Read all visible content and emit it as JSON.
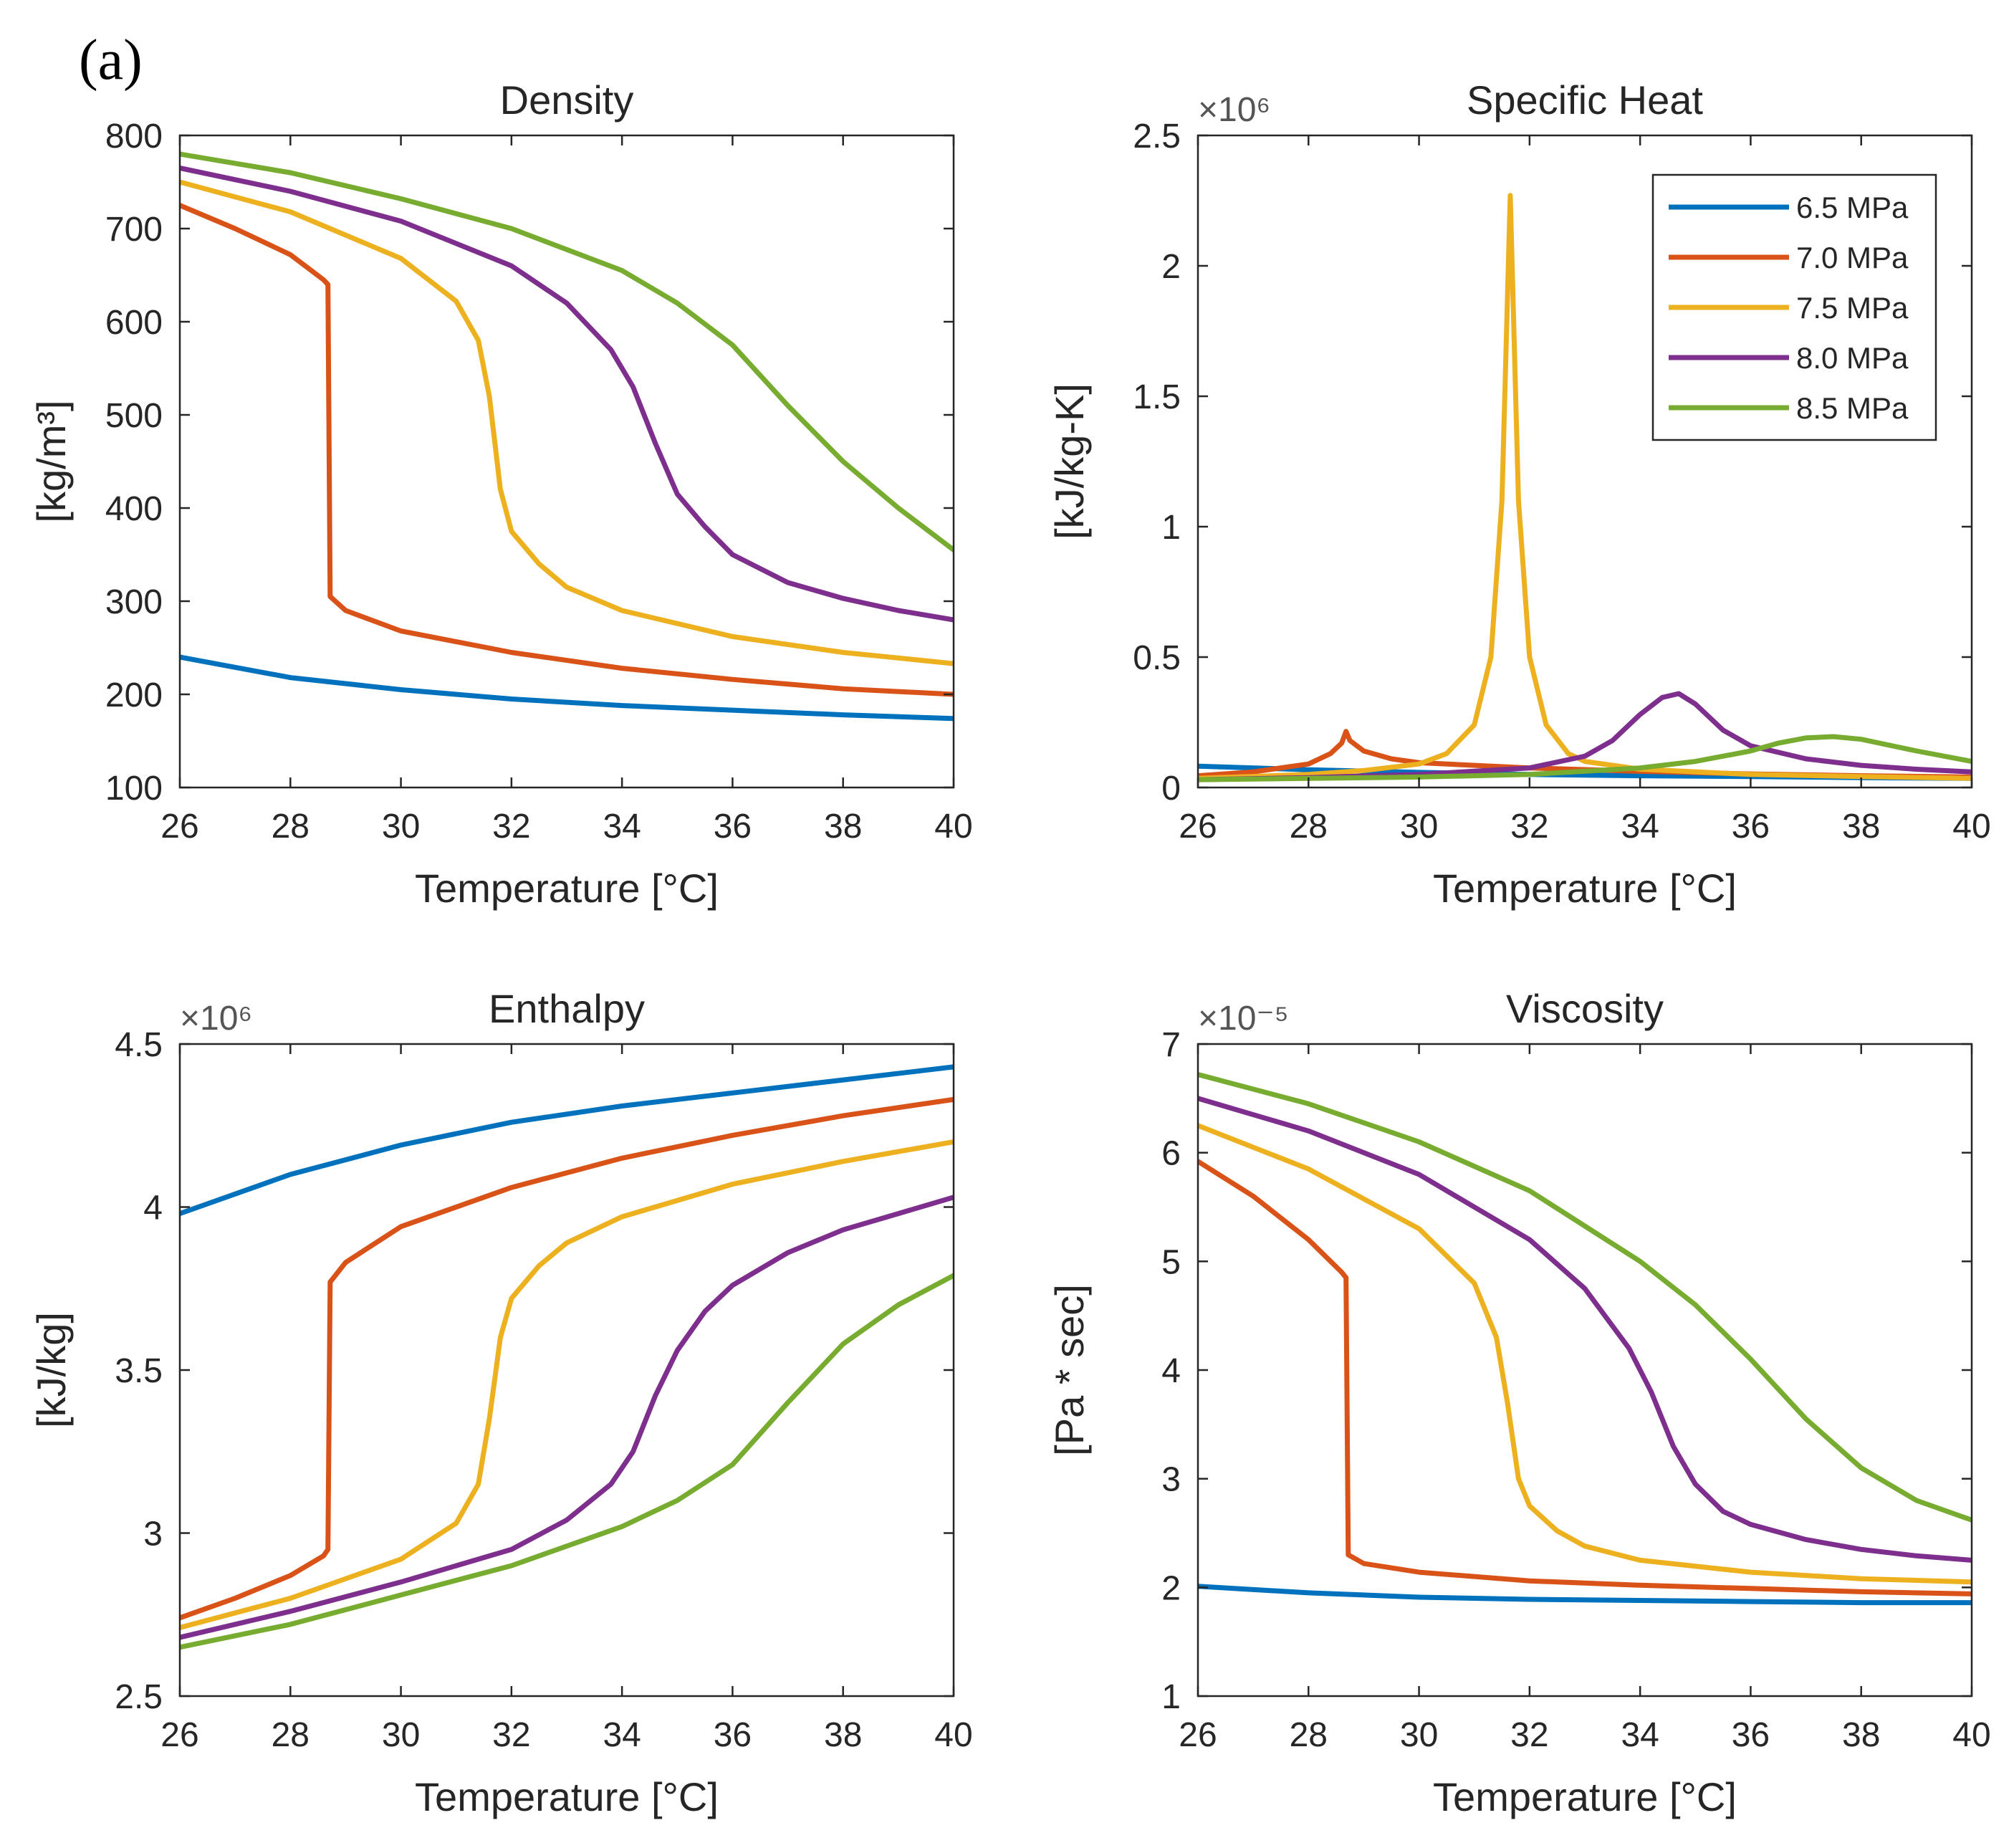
{
  "figure": {
    "panel_label": "(a)"
  },
  "series_colors": {
    "6.5 MPa": "#0072BD",
    "7.0 MPa": "#D95319",
    "7.5 MPa": "#EDB120",
    "8.0 MPa": "#7E2F8E",
    "8.5 MPa": "#77AC30"
  },
  "chart_data": [
    {
      "id": "density",
      "type": "line",
      "title": "Density",
      "xlabel": "Temperature [°C]",
      "ylabel": "[kg/m³]",
      "xlim": [
        26,
        40
      ],
      "ylim": [
        100,
        800
      ],
      "xticks": [
        26,
        28,
        30,
        32,
        34,
        36,
        38,
        40
      ],
      "yticks": [
        100,
        200,
        300,
        400,
        500,
        600,
        700,
        800
      ],
      "ytick_labels": [
        "100",
        "200",
        "300",
        "400",
        "500",
        "600",
        "700",
        "800"
      ],
      "exponent_label": "",
      "series": [
        {
          "name": "6.5 MPa",
          "x": [
            26,
            28,
            30,
            32,
            34,
            36,
            38,
            40
          ],
          "values": [
            240,
            218,
            205,
            195,
            188,
            183,
            178,
            174
          ]
        },
        {
          "name": "7.0 MPa",
          "x": [
            26,
            27,
            28,
            28.6,
            28.68,
            28.72,
            29,
            30,
            32,
            34,
            36,
            38,
            40
          ],
          "values": [
            725,
            700,
            672,
            645,
            640,
            305,
            290,
            268,
            245,
            228,
            216,
            206,
            200
          ]
        },
        {
          "name": "7.5 MPa",
          "x": [
            26,
            28,
            30,
            31,
            31.4,
            31.6,
            31.8,
            32,
            32.5,
            33,
            34,
            36,
            38,
            40
          ],
          "values": [
            750,
            718,
            668,
            622,
            580,
            520,
            420,
            375,
            340,
            315,
            290,
            262,
            245,
            233
          ]
        },
        {
          "name": "8.0 MPa",
          "x": [
            26,
            28,
            30,
            32,
            33,
            33.8,
            34.2,
            34.6,
            35,
            35.5,
            36,
            37,
            38,
            39,
            40
          ],
          "values": [
            765,
            740,
            708,
            660,
            620,
            570,
            530,
            470,
            415,
            380,
            350,
            320,
            303,
            290,
            280
          ]
        },
        {
          "name": "8.5 MPa",
          "x": [
            26,
            28,
            30,
            32,
            34,
            35,
            36,
            37,
            38,
            39,
            40
          ],
          "values": [
            780,
            760,
            732,
            700,
            655,
            620,
            575,
            510,
            450,
            400,
            355
          ]
        }
      ]
    },
    {
      "id": "specific_heat",
      "type": "line",
      "title": "Specific Heat",
      "xlabel": "Temperature [°C]",
      "ylabel": "[kJ/kg-K]",
      "xlim": [
        26,
        40
      ],
      "ylim": [
        0,
        2.5
      ],
      "xticks": [
        26,
        28,
        30,
        32,
        34,
        36,
        38,
        40
      ],
      "yticks": [
        0,
        0.5,
        1,
        1.5,
        2,
        2.5
      ],
      "ytick_labels": [
        "0",
        "0.5",
        "1",
        "1.5",
        "2",
        "2.5"
      ],
      "exponent_label": "×10⁶",
      "legend": {
        "position": "top-right",
        "entries": [
          "6.5 MPa",
          "7.0 MPa",
          "7.5 MPa",
          "8.0 MPa",
          "8.5 MPa"
        ]
      },
      "series": [
        {
          "name": "6.5 MPa",
          "x": [
            26,
            28,
            30,
            32,
            34,
            36,
            38,
            40
          ],
          "values": [
            0.082,
            0.068,
            0.058,
            0.05,
            0.045,
            0.042,
            0.038,
            0.035
          ]
        },
        {
          "name": "7.0 MPa",
          "x": [
            26,
            27,
            28,
            28.4,
            28.6,
            28.68,
            28.75,
            29,
            29.5,
            30,
            32,
            34,
            36,
            38,
            40
          ],
          "values": [
            0.045,
            0.06,
            0.09,
            0.13,
            0.17,
            0.215,
            0.18,
            0.14,
            0.11,
            0.095,
            0.075,
            0.062,
            0.052,
            0.045,
            0.04
          ]
        },
        {
          "name": "7.5 MPa",
          "x": [
            26,
            28,
            29,
            30,
            30.5,
            31,
            31.3,
            31.5,
            31.65,
            31.8,
            32,
            32.3,
            32.7,
            33,
            34,
            36,
            38,
            40
          ],
          "values": [
            0.035,
            0.05,
            0.065,
            0.09,
            0.13,
            0.24,
            0.5,
            1.1,
            2.27,
            1.1,
            0.5,
            0.24,
            0.13,
            0.1,
            0.07,
            0.05,
            0.042,
            0.035
          ]
        },
        {
          "name": "8.0 MPa",
          "x": [
            26,
            28,
            30,
            32,
            33,
            33.5,
            34,
            34.4,
            34.7,
            35,
            35.5,
            36,
            37,
            38,
            39,
            40
          ],
          "values": [
            0.03,
            0.038,
            0.05,
            0.075,
            0.12,
            0.18,
            0.28,
            0.345,
            0.36,
            0.32,
            0.22,
            0.16,
            0.11,
            0.085,
            0.07,
            0.06
          ]
        },
        {
          "name": "8.5 MPa",
          "x": [
            26,
            28,
            30,
            32,
            34,
            35,
            36,
            36.5,
            37,
            37.5,
            38,
            39,
            40
          ],
          "values": [
            0.03,
            0.035,
            0.04,
            0.05,
            0.075,
            0.1,
            0.14,
            0.17,
            0.19,
            0.195,
            0.185,
            0.14,
            0.1
          ]
        }
      ]
    },
    {
      "id": "enthalpy",
      "type": "line",
      "title": "Enthalpy",
      "xlabel": "Temperature [°C]",
      "ylabel": "[kJ/kg]",
      "xlim": [
        26,
        40
      ],
      "ylim": [
        2.5,
        4.5
      ],
      "xticks": [
        26,
        28,
        30,
        32,
        34,
        36,
        38,
        40
      ],
      "yticks": [
        2.5,
        3,
        3.5,
        4,
        4.5
      ],
      "ytick_labels": [
        "2.5",
        "3",
        "3.5",
        "4",
        "4.5"
      ],
      "exponent_label": "×10⁶",
      "series": [
        {
          "name": "6.5 MPa",
          "x": [
            26,
            28,
            30,
            32,
            34,
            36,
            38,
            40
          ],
          "values": [
            3.98,
            4.1,
            4.19,
            4.26,
            4.31,
            4.35,
            4.39,
            4.43
          ]
        },
        {
          "name": "7.0 MPa",
          "x": [
            26,
            27,
            28,
            28.6,
            28.68,
            28.72,
            29,
            30,
            32,
            34,
            36,
            38,
            40
          ],
          "values": [
            2.74,
            2.8,
            2.87,
            2.93,
            2.95,
            3.77,
            3.83,
            3.94,
            4.06,
            4.15,
            4.22,
            4.28,
            4.33
          ]
        },
        {
          "name": "7.5 MPa",
          "x": [
            26,
            28,
            30,
            31,
            31.4,
            31.6,
            31.8,
            32,
            32.5,
            33,
            34,
            36,
            38,
            40
          ],
          "values": [
            2.71,
            2.8,
            2.92,
            3.03,
            3.15,
            3.35,
            3.6,
            3.72,
            3.82,
            3.89,
            3.97,
            4.07,
            4.14,
            4.2
          ]
        },
        {
          "name": "8.0 MPa",
          "x": [
            26,
            28,
            30,
            32,
            33,
            33.8,
            34.2,
            34.6,
            35,
            35.5,
            36,
            37,
            38,
            39,
            40
          ],
          "values": [
            2.68,
            2.76,
            2.85,
            2.95,
            3.04,
            3.15,
            3.25,
            3.42,
            3.56,
            3.68,
            3.76,
            3.86,
            3.93,
            3.98,
            4.03
          ]
        },
        {
          "name": "8.5 MPa",
          "x": [
            26,
            28,
            30,
            32,
            34,
            35,
            36,
            37,
            38,
            39,
            40
          ],
          "values": [
            2.65,
            2.72,
            2.81,
            2.9,
            3.02,
            3.1,
            3.21,
            3.4,
            3.58,
            3.7,
            3.79
          ]
        }
      ]
    },
    {
      "id": "viscosity",
      "type": "line",
      "title": "Viscosity",
      "xlabel": "Temperature [°C]",
      "ylabel": "[Pa * sec]",
      "xlim": [
        26,
        40
      ],
      "ylim": [
        1,
        7
      ],
      "xticks": [
        26,
        28,
        30,
        32,
        34,
        36,
        38,
        40
      ],
      "yticks": [
        1,
        2,
        3,
        4,
        5,
        6,
        7
      ],
      "ytick_labels": [
        "1",
        "2",
        "3",
        "4",
        "5",
        "6",
        "7"
      ],
      "exponent_label": "×10⁻⁵",
      "series": [
        {
          "name": "6.5 MPa",
          "x": [
            26,
            28,
            30,
            32,
            34,
            36,
            38,
            40
          ],
          "values": [
            2.01,
            1.95,
            1.91,
            1.89,
            1.88,
            1.87,
            1.86,
            1.86
          ]
        },
        {
          "name": "7.0 MPa",
          "x": [
            26,
            27,
            28,
            28.6,
            28.68,
            28.72,
            29,
            30,
            32,
            34,
            36,
            38,
            40
          ],
          "values": [
            5.92,
            5.6,
            5.2,
            4.9,
            4.85,
            2.3,
            2.22,
            2.14,
            2.06,
            2.02,
            1.99,
            1.96,
            1.94
          ]
        },
        {
          "name": "7.5 MPa",
          "x": [
            26,
            28,
            30,
            31,
            31.4,
            31.6,
            31.8,
            32,
            32.5,
            33,
            34,
            36,
            38,
            40
          ],
          "values": [
            6.25,
            5.85,
            5.3,
            4.8,
            4.3,
            3.7,
            3.0,
            2.75,
            2.52,
            2.38,
            2.25,
            2.14,
            2.08,
            2.05
          ]
        },
        {
          "name": "8.0 MPa",
          "x": [
            26,
            28,
            30,
            32,
            33,
            33.8,
            34.2,
            34.6,
            35,
            35.5,
            36,
            37,
            38,
            39,
            40
          ],
          "values": [
            6.5,
            6.2,
            5.8,
            5.2,
            4.75,
            4.2,
            3.8,
            3.3,
            2.95,
            2.7,
            2.58,
            2.44,
            2.35,
            2.29,
            2.25
          ]
        },
        {
          "name": "8.5 MPa",
          "x": [
            26,
            28,
            30,
            32,
            34,
            35,
            36,
            37,
            38,
            39,
            40
          ],
          "values": [
            6.72,
            6.45,
            6.1,
            5.65,
            5.0,
            4.6,
            4.1,
            3.55,
            3.1,
            2.8,
            2.62
          ]
        }
      ]
    }
  ]
}
